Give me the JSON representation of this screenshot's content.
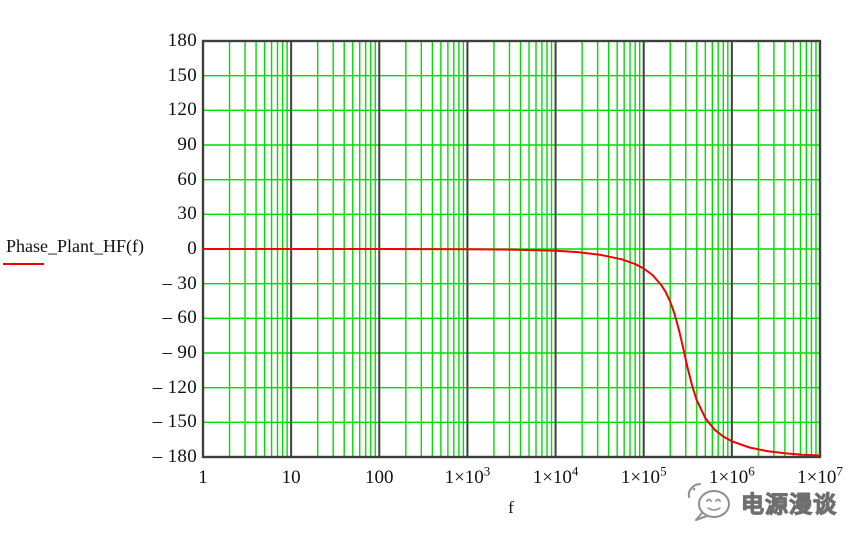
{
  "figure": {
    "trace_label": "Phase_Plant_HF(f)",
    "x_axis_label": "f"
  },
  "watermark": {
    "text": "电源漫谈",
    "logo": "wechat-bubble-logo"
  },
  "colors": {
    "background": "#FFFFFF",
    "grid_green": "#00DC00",
    "axis_dark": "#3F3F3F",
    "curve_red": "#F20000",
    "label_text": "#111111",
    "watermark_gray": "#8F8F8F"
  },
  "chart_data": {
    "type": "line",
    "title": "",
    "xlabel": "f",
    "ylabel": "Phase_Plant_HF(f)",
    "x_scale": "log10",
    "x_range_log10": [
      0,
      7
    ],
    "ylim": [
      -180,
      180
    ],
    "y_tick_step": 30,
    "grid": true,
    "minor_log_divisions": [
      2,
      3,
      4,
      5,
      6,
      7,
      8,
      9
    ],
    "y_tick_labels": [
      "180",
      "150",
      "120",
      "90",
      "60",
      "30",
      "0",
      "– 30",
      "– 60",
      "– 90",
      "– 120",
      "– 150",
      "– 180"
    ],
    "x_tick_labels": [
      {
        "base": "1",
        "sup": ""
      },
      {
        "base": "10",
        "sup": ""
      },
      {
        "base": "100",
        "sup": ""
      },
      {
        "base": "1×10",
        "sup": "3"
      },
      {
        "base": "1×10",
        "sup": "4"
      },
      {
        "base": "1×10",
        "sup": "5"
      },
      {
        "base": "1×10",
        "sup": "6"
      },
      {
        "base": "1×10",
        "sup": "7"
      }
    ],
    "series": [
      {
        "name": "Phase_Plant_HF(f)",
        "color": "#F20000",
        "points_log10f_phase_deg": [
          [
            0,
            0
          ],
          [
            1,
            0
          ],
          [
            2,
            0
          ],
          [
            3,
            -0.2
          ],
          [
            3.5,
            -0.5
          ],
          [
            4,
            -1.5
          ],
          [
            4.25,
            -2.7
          ],
          [
            4.5,
            -4.9
          ],
          [
            4.75,
            -8.9
          ],
          [
            4.9,
            -12.9
          ],
          [
            5.0,
            -16.9
          ],
          [
            5.1,
            -22.5
          ],
          [
            5.2,
            -31.2
          ],
          [
            5.25,
            -37.4
          ],
          [
            5.3,
            -45.6
          ],
          [
            5.35,
            -56.3
          ],
          [
            5.4,
            -70.2
          ],
          [
            5.43,
            -79.8
          ],
          [
            5.46,
            -90.0
          ],
          [
            5.5,
            -103.5
          ],
          [
            5.55,
            -118.5
          ],
          [
            5.6,
            -130.5
          ],
          [
            5.7,
            -146.5
          ],
          [
            5.8,
            -156.0
          ],
          [
            5.9,
            -162.2
          ],
          [
            6.0,
            -166.4
          ],
          [
            6.2,
            -171.8
          ],
          [
            6.4,
            -174.9
          ],
          [
            6.6,
            -176.8
          ],
          [
            6.8,
            -178.0
          ],
          [
            7.0,
            -178.7
          ]
        ]
      }
    ]
  }
}
